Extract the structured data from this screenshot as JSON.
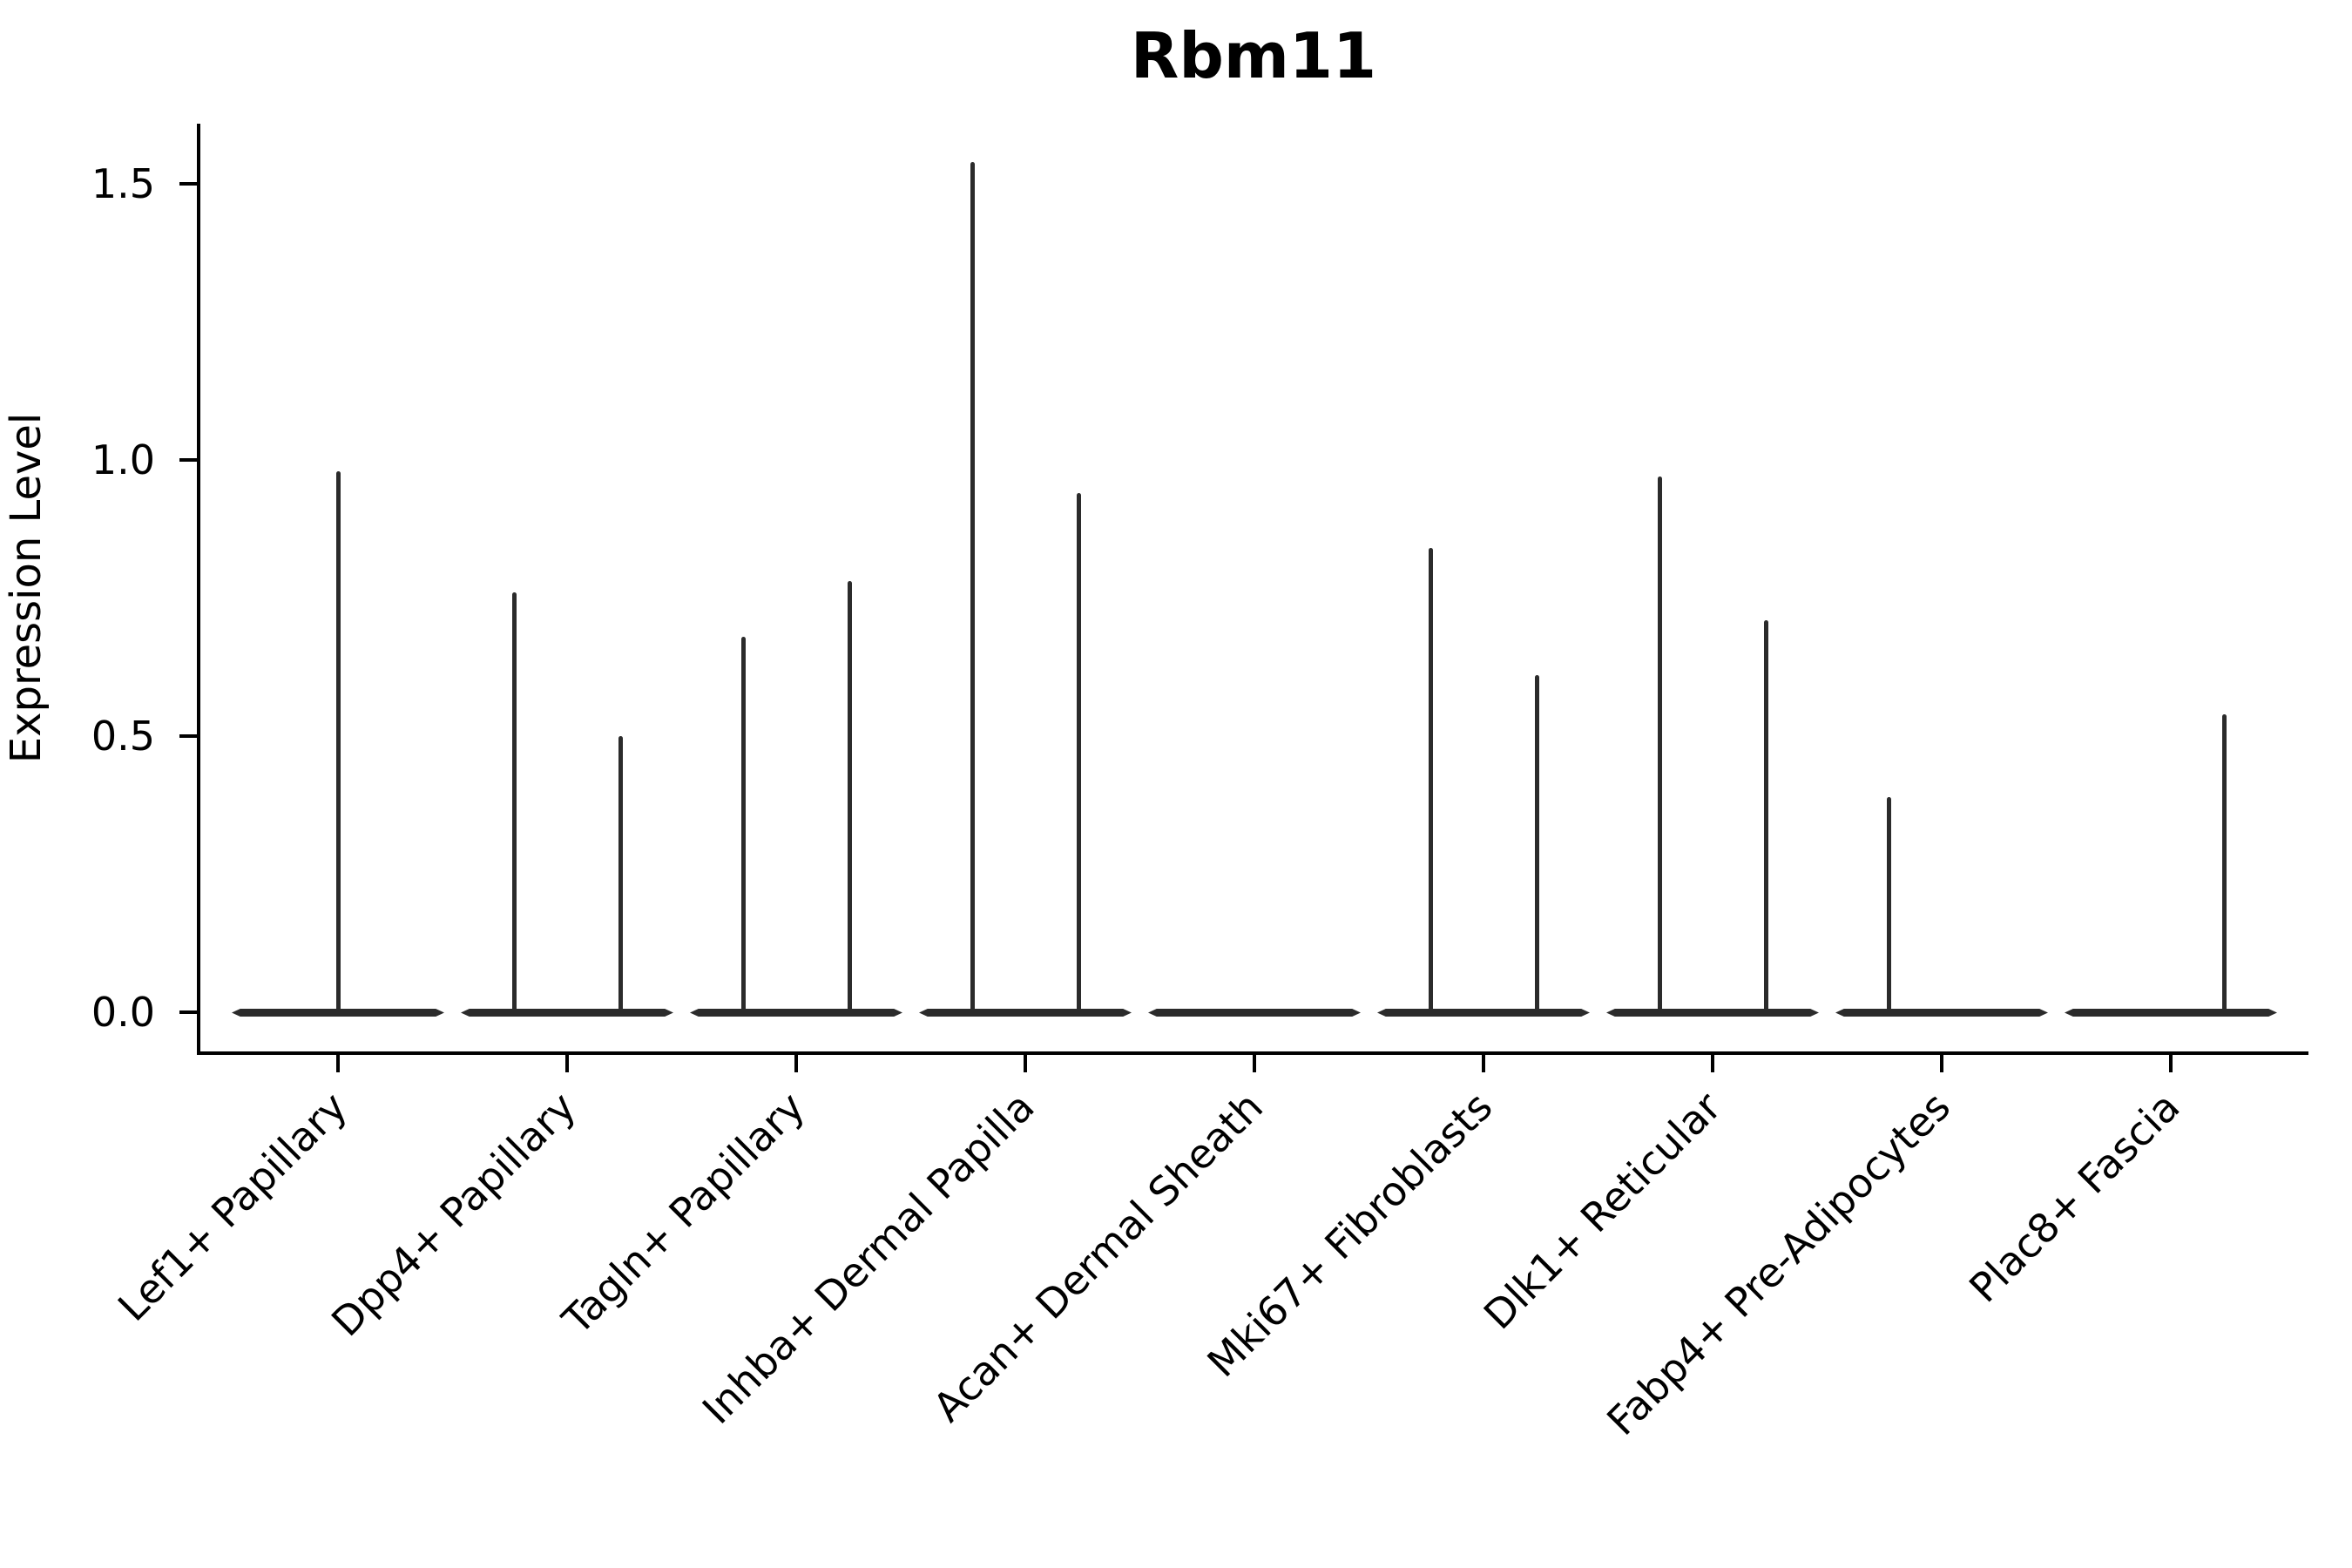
{
  "figure": {
    "title": "Rbm11",
    "background_color": "#ffffff",
    "axis_color": "#000000",
    "violin_color": "#2b2b2b",
    "text_color": "#000000"
  },
  "y_axis": {
    "label": "Expression Level",
    "tick_labels": [
      "1.5",
      "1.0",
      "0.5",
      "0.0"
    ],
    "tick_values": [
      1.5,
      1.0,
      0.5,
      0.0
    ]
  },
  "x_axis": {
    "tick_labels": [
      "Lef1+ Papillary",
      "Dpp4+ Papillary",
      "Tagln+ Papillary",
      "Inhba+ Dermal Papilla",
      "Acan+ Dermal Sheath",
      "Mki67+ Fibroblasts",
      "Dlk1+ Reticular",
      "Fabp4+ Pre-Adipocytes",
      "Plac8+ Fascia"
    ]
  },
  "chart_data": {
    "type": "violin",
    "title": "Rbm11",
    "xlabel": "",
    "ylabel": "Expression Level",
    "ylim": [
      -0.08,
      1.61
    ],
    "yticks": [
      0.0,
      0.5,
      1.0,
      1.5
    ],
    "grid": false,
    "legend": "none",
    "description": "Collapsed violins: wide flat density at expression 0 for every category, with thin vertical density spikes reaching the maximum expression of the few expressing cells. Categories may contain one full-width violin (center) or two side-by-side violins (left/right).",
    "categories": [
      {
        "label": "Lef1+ Papillary",
        "violins": [
          {
            "position": "center",
            "max": 0.98
          }
        ]
      },
      {
        "label": "Dpp4+ Papillary",
        "violins": [
          {
            "position": "left",
            "max": 0.76
          },
          {
            "position": "right",
            "max": 0.5
          }
        ]
      },
      {
        "label": "Tagln+ Papillary",
        "violins": [
          {
            "position": "left",
            "max": 0.68
          },
          {
            "position": "right",
            "max": 0.78
          }
        ]
      },
      {
        "label": "Inhba+ Dermal Papilla",
        "violins": [
          {
            "position": "left",
            "max": 1.54
          },
          {
            "position": "right",
            "max": 0.94
          }
        ]
      },
      {
        "label": "Acan+ Dermal Sheath",
        "violins": []
      },
      {
        "label": "Mki67+ Fibroblasts",
        "violins": [
          {
            "position": "left",
            "max": 0.84
          },
          {
            "position": "right",
            "max": 0.61
          }
        ]
      },
      {
        "label": "Dlk1+ Reticular",
        "violins": [
          {
            "position": "left",
            "max": 0.97
          },
          {
            "position": "right",
            "max": 0.71
          }
        ]
      },
      {
        "label": "Fabp4+ Pre-Adipocytes",
        "violins": [
          {
            "position": "left",
            "max": 0.39
          }
        ]
      },
      {
        "label": "Plac8+ Fascia",
        "violins": [
          {
            "position": "right",
            "max": 0.54
          }
        ]
      }
    ]
  }
}
